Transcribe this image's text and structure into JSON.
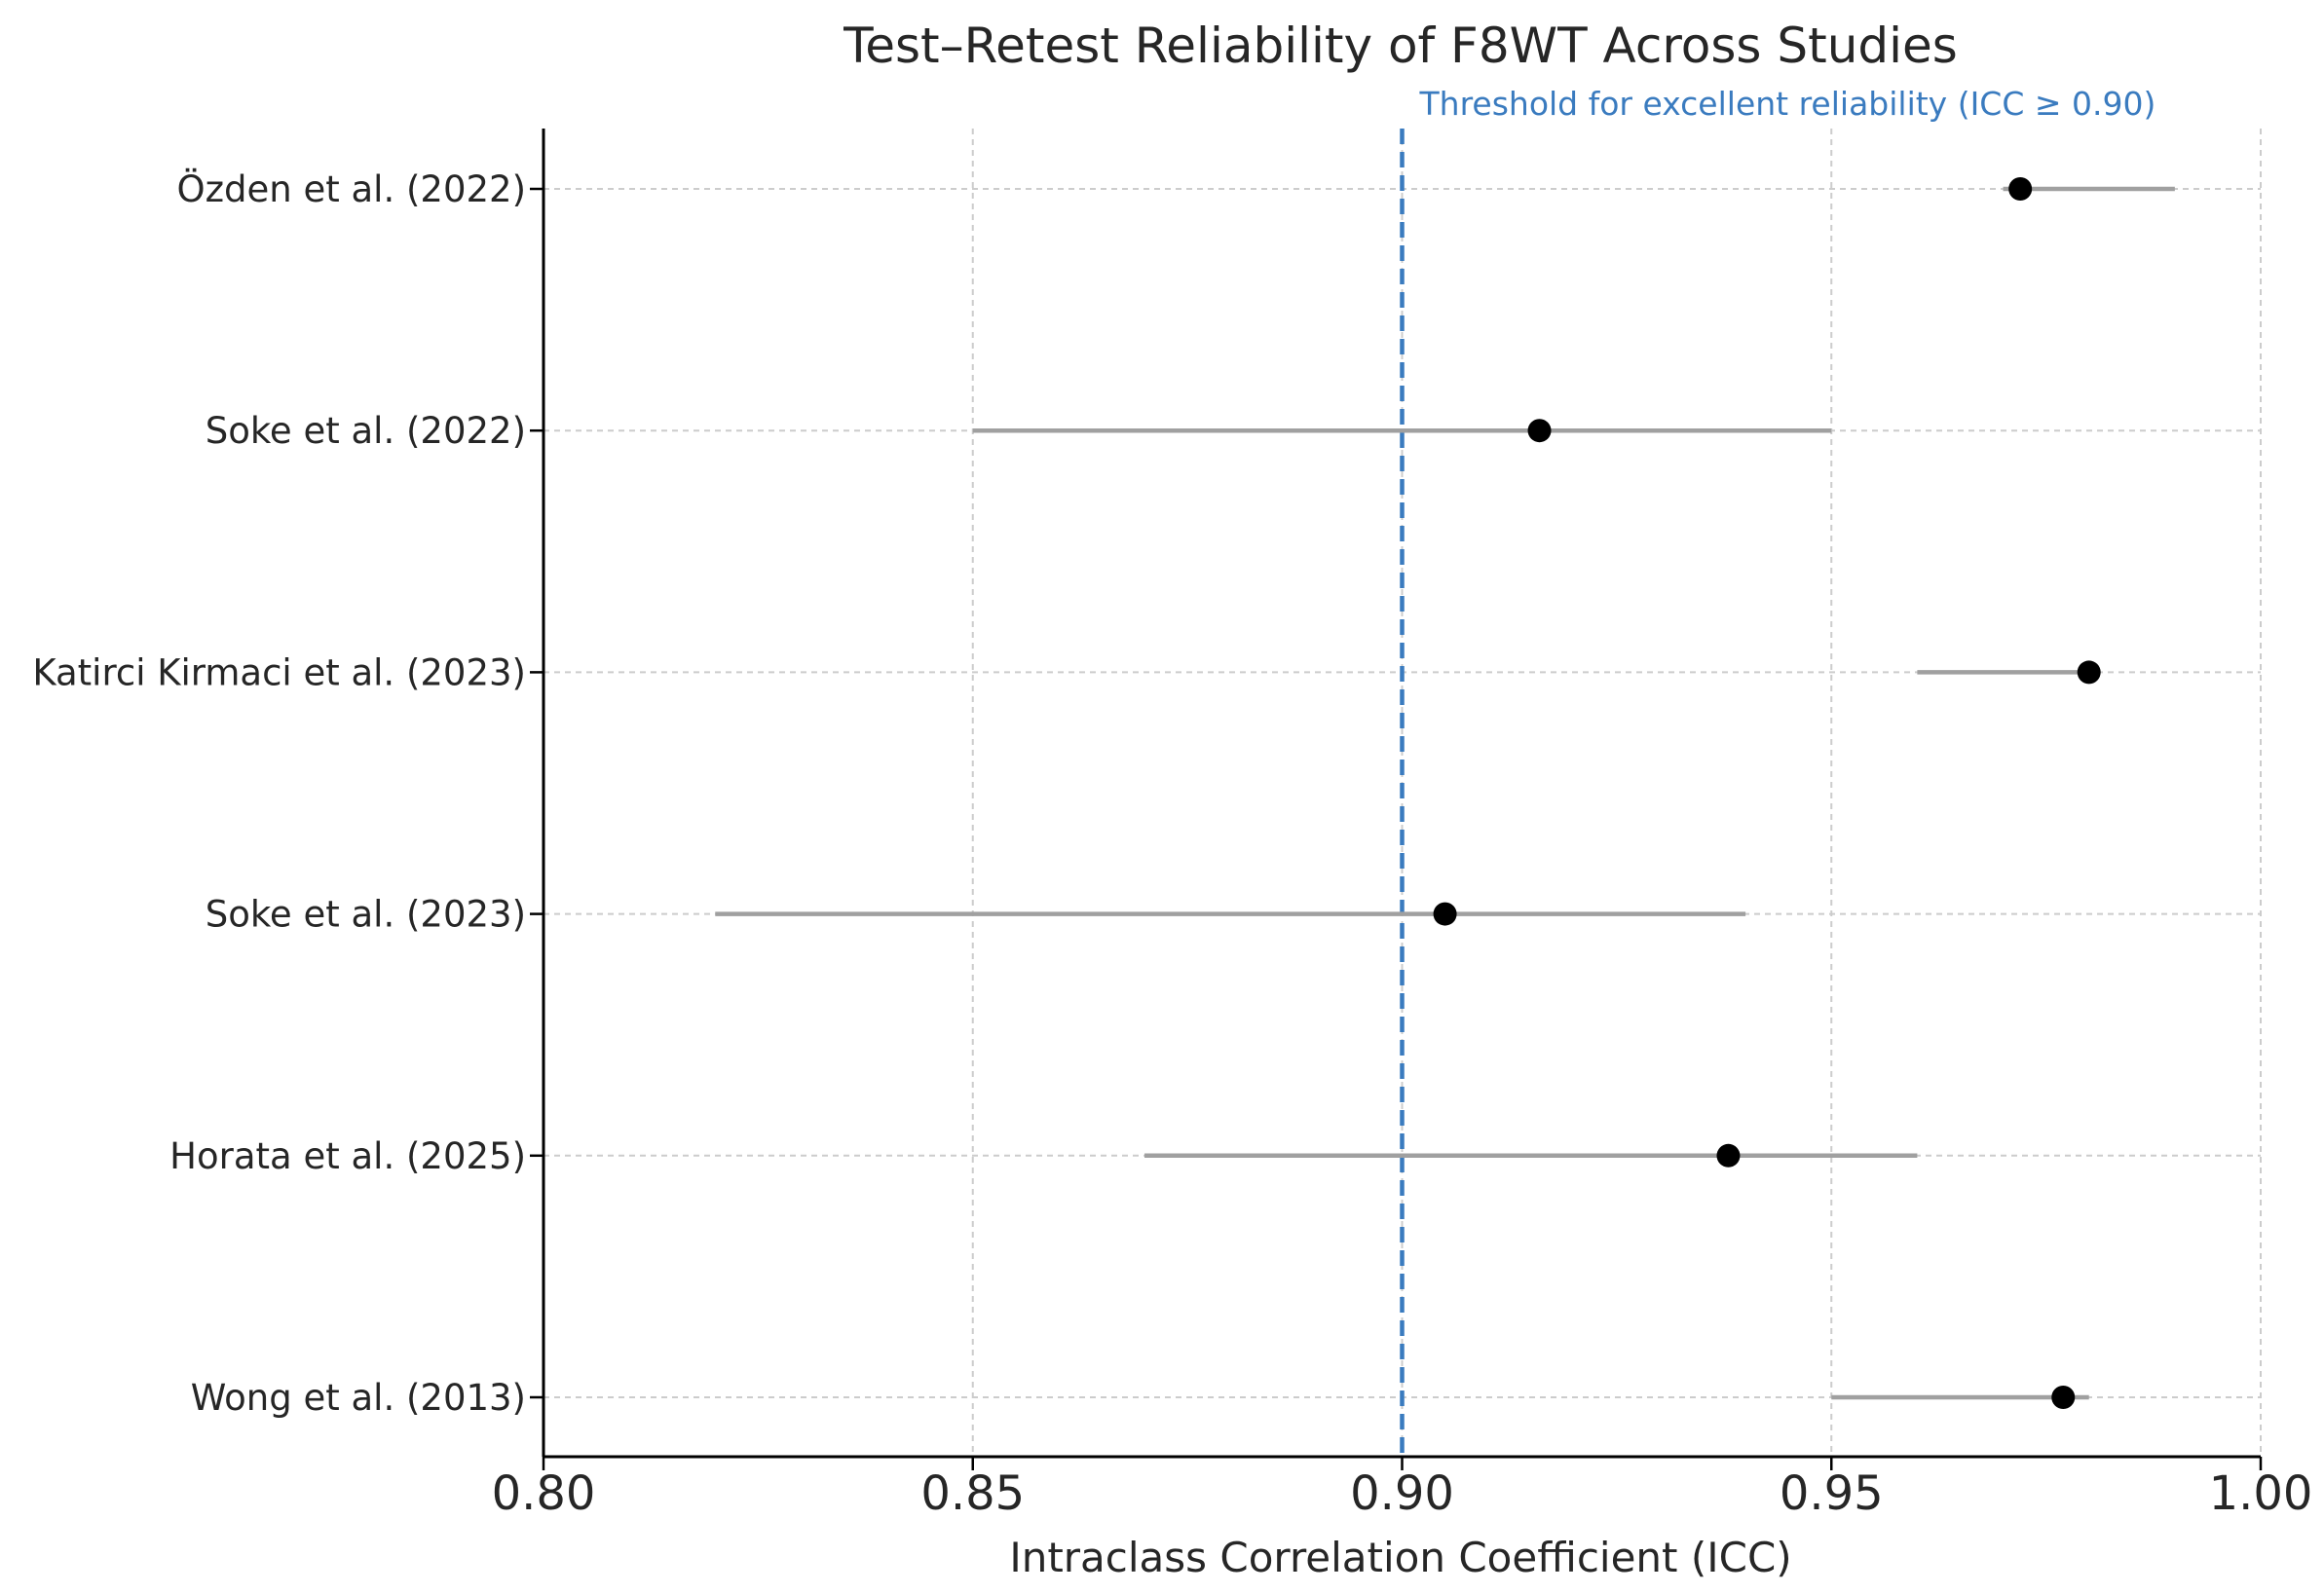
{
  "chart_data": {
    "type": "scatter",
    "title": "Test–Retest Reliability of F8WT Across Studies",
    "xlabel": "Intraclass Correlation Coefficient (ICC)",
    "ylabel": "",
    "xlim": [
      0.8,
      1.0
    ],
    "x_ticks": [
      0.8,
      0.85,
      0.9,
      0.95,
      1.0
    ],
    "x_tick_labels": [
      "0.80",
      "0.85",
      "0.90",
      "0.95",
      "1.00"
    ],
    "grid": true,
    "studies": [
      {
        "label": "Özden et al. (2022)",
        "icc": 0.972,
        "ci_low": 0.97,
        "ci_high": 0.99
      },
      {
        "label": "Soke et al. (2022)",
        "icc": 0.916,
        "ci_low": 0.85,
        "ci_high": 0.95
      },
      {
        "label": "Katirci Kirmaci et al. (2023)",
        "icc": 0.98,
        "ci_low": 0.96,
        "ci_high": 0.98
      },
      {
        "label": "Soke et al. (2023)",
        "icc": 0.905,
        "ci_low": 0.82,
        "ci_high": 0.94
      },
      {
        "label": "Horata et al. (2025)",
        "icc": 0.938,
        "ci_low": 0.87,
        "ci_high": 0.96
      },
      {
        "label": "Wong et al. (2013)",
        "icc": 0.977,
        "ci_low": 0.95,
        "ci_high": 0.98
      }
    ],
    "reference_line": {
      "x": 0.9,
      "label": "Threshold for excellent reliability (ICC ≥ 0.90)",
      "color": "#3a7bbf",
      "style": "dashed"
    },
    "colors": {
      "point": "#000000",
      "ci_line": "#a0a0a0",
      "grid": "#cccccc",
      "text": "#262626"
    }
  }
}
